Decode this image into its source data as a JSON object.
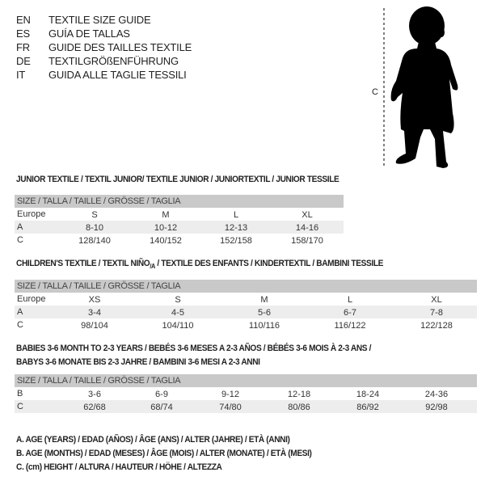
{
  "languages": [
    {
      "code": "EN",
      "text": "TEXTILE SIZE GUIDE"
    },
    {
      "code": "ES",
      "text": "GUÍA DE TALLAS"
    },
    {
      "code": "FR",
      "text": "GUIDE DES TAILLES TEXTILE"
    },
    {
      "code": "DE",
      "text": "TEXTILGRÖßENFÜHRUNG"
    },
    {
      "code": "IT",
      "text": "GUIDA ALLE TAGLIE TESSILI"
    }
  ],
  "figure": {
    "label": "C",
    "icon": "child-silhouette-icon"
  },
  "junior": {
    "title": "JUNIOR TEXTILE / TEXTIL JUNIOR/ TEXTILE JUNIOR / JUNIORTEXTIL / JUNIOR TESSILE",
    "header": "SIZE / TALLA / TAILLE / GRÖSSE / TAGLIA",
    "rows": [
      {
        "label": "Europe",
        "values": [
          "S",
          "M",
          "L",
          "XL"
        ]
      },
      {
        "label": "A",
        "values": [
          "8-10",
          "10-12",
          "12-13",
          "14-16"
        ]
      },
      {
        "label": "C",
        "values": [
          "128/140",
          "140/152",
          "152/158",
          "158/170"
        ]
      }
    ]
  },
  "children": {
    "title_main": "CHILDREN'S TEXTILE / TEXTIL NIÑO",
    "title_sub": "/A",
    "title_rest": " / TEXTILE DES ENFANTS / KINDERTEXTIL / BAMBINI TESSILE",
    "header": "SIZE / TALLA / TAILLE / GRÖSSE / TAGLIA",
    "rows": [
      {
        "label": "Europe",
        "values": [
          "XS",
          "S",
          "M",
          "L",
          "XL"
        ]
      },
      {
        "label": "A",
        "values": [
          "3-4",
          "4-5",
          "5-6",
          "6-7",
          "7-8"
        ]
      },
      {
        "label": "C",
        "values": [
          "98/104",
          "104/110",
          "110/116",
          "116/122",
          "122/128"
        ]
      }
    ]
  },
  "babies": {
    "title_line1": "BABIES 3-6 MONTH TO 2-3 YEARS / BEBÉS 3-6 MESES A 2-3 AÑOS / BÉBÉS 3-6 MOIS À 2-3 ANS /",
    "title_line2": "BABYS 3-6 MONATE BIS 2-3 JAHRE / BAMBINI 3-6 MESI A 2-3 ANNI",
    "header": "SIZE / TALLA / TAILLE / GRÖSSE / TAGLIA",
    "rows": [
      {
        "label": "B",
        "values": [
          "3-6",
          "6-9",
          "9-12",
          "12-18",
          "18-24",
          "24-36"
        ]
      },
      {
        "label": "C",
        "values": [
          "62/68",
          "68/74",
          "74/80",
          "80/86",
          "86/92",
          "92/98"
        ]
      }
    ]
  },
  "legend": [
    "A. AGE (YEARS) / EDAD (AÑOS) / ÂGE (ANS) / ALTER (JAHRE) / ETÀ (ANNI)",
    "B. AGE (MONTHS) / EDAD (MESES) / ÂGE (MOIS) / ALTER (MONATE) / ETÀ (MESI)",
    "C. (cm) HEIGHT / ALTURA / HAUTEUR / HÖHE / ALTEZZA"
  ],
  "colors": {
    "header_bg": "#c9c9c9",
    "shade_bg": "#ededed",
    "silhouette": "#000000"
  }
}
